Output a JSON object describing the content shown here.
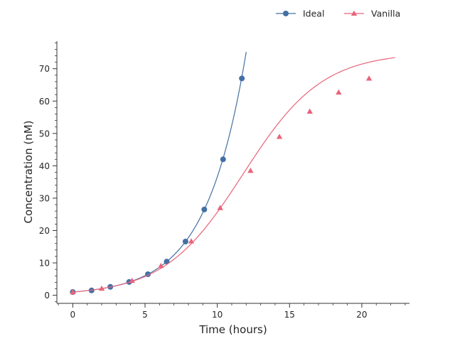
{
  "chart_data": {
    "type": "line",
    "title": "",
    "xlabel": "Time (hours)",
    "ylabel": "Concentration (nM)",
    "xlim": [
      -1.1,
      23.3
    ],
    "ylim": [
      -2.5,
      78.5
    ],
    "xticks": [
      0,
      5,
      10,
      15,
      20
    ],
    "yticks": [
      0,
      10,
      20,
      30,
      40,
      50,
      60,
      70
    ],
    "legend_position": "top-right, outside plot area",
    "grid": false,
    "series": [
      {
        "name": "Ideal",
        "color": "#4370a4",
        "marker": "circle",
        "curve": {
          "kind": "exponential",
          "y0": 1.0,
          "rate": 0.36,
          "x_end": 12.0
        },
        "points": [
          {
            "x": 0.0,
            "y": 1.0
          },
          {
            "x": 1.3,
            "y": 1.5
          },
          {
            "x": 2.6,
            "y": 2.6
          },
          {
            "x": 3.9,
            "y": 4.1
          },
          {
            "x": 5.2,
            "y": 6.5
          },
          {
            "x": 6.5,
            "y": 10.4
          },
          {
            "x": 7.8,
            "y": 16.6
          },
          {
            "x": 9.1,
            "y": 26.5
          },
          {
            "x": 10.4,
            "y": 42.0
          },
          {
            "x": 11.7,
            "y": 67.0
          }
        ]
      },
      {
        "name": "Vanilla",
        "color": "#e8647a",
        "marker": "triangle",
        "curve": {
          "kind": "logistic",
          "capacity": 75,
          "y0": 1.0,
          "rate": 0.365,
          "x_end": 22.3
        },
        "points": [
          {
            "x": 0.0,
            "y": 1.0
          },
          {
            "x": 2.0,
            "y": 2.1
          },
          {
            "x": 4.1,
            "y": 4.5
          },
          {
            "x": 6.1,
            "y": 9.1
          },
          {
            "x": 8.2,
            "y": 16.7
          },
          {
            "x": 10.2,
            "y": 27.0
          },
          {
            "x": 12.3,
            "y": 38.5
          },
          {
            "x": 14.3,
            "y": 49.0
          },
          {
            "x": 16.4,
            "y": 56.8
          },
          {
            "x": 18.4,
            "y": 62.7
          },
          {
            "x": 20.5,
            "y": 67.0
          }
        ]
      }
    ]
  }
}
